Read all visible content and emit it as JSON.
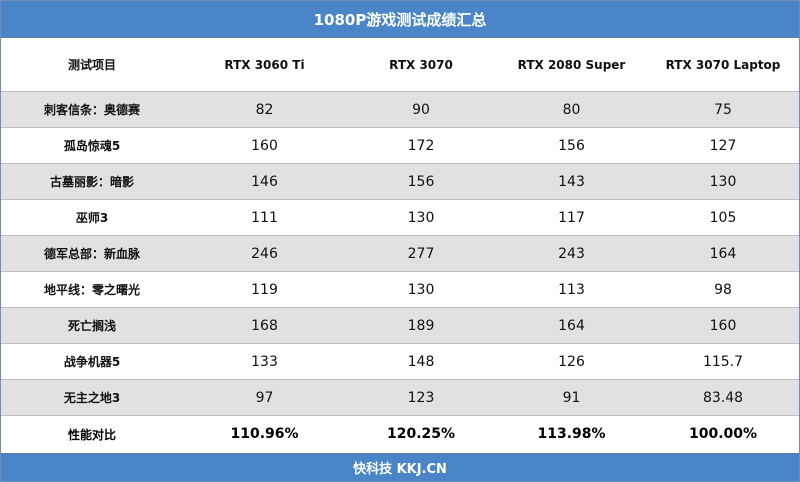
{
  "chart_data": {
    "type": "table",
    "title": "1080P游戏测试成绩汇总",
    "header": [
      "测试项目",
      "RTX 3060 Ti",
      "RTX 3070",
      "RTX 2080 Super",
      "RTX 3070 Laptop"
    ],
    "rows": [
      {
        "name": "刺客信条：奥德赛",
        "values": [
          "82",
          "90",
          "80",
          "75"
        ]
      },
      {
        "name": "孤岛惊魂5",
        "values": [
          "160",
          "172",
          "156",
          "127"
        ]
      },
      {
        "name": "古墓丽影：暗影",
        "values": [
          "146",
          "156",
          "143",
          "130"
        ]
      },
      {
        "name": "巫师3",
        "values": [
          "111",
          "130",
          "117",
          "105"
        ]
      },
      {
        "name": "德军总部：新血脉",
        "values": [
          "246",
          "277",
          "243",
          "164"
        ]
      },
      {
        "name": "地平线：零之曙光",
        "values": [
          "119",
          "130",
          "113",
          "98"
        ]
      },
      {
        "name": "死亡搁浅",
        "values": [
          "168",
          "189",
          "164",
          "160"
        ]
      },
      {
        "name": "战争机器5",
        "values": [
          "133",
          "148",
          "126",
          "115.7"
        ]
      },
      {
        "name": "无主之地3",
        "values": [
          "97",
          "123",
          "91",
          "83.48"
        ]
      }
    ],
    "summary": {
      "name": "性能对比",
      "values": [
        "110.96%",
        "120.25%",
        "113.98%",
        "100.00%"
      ]
    }
  },
  "footer": "快科技 KKJ.CN",
  "colors": {
    "header_bar": "#4a86c7",
    "stripe": "#e1e1e1"
  }
}
